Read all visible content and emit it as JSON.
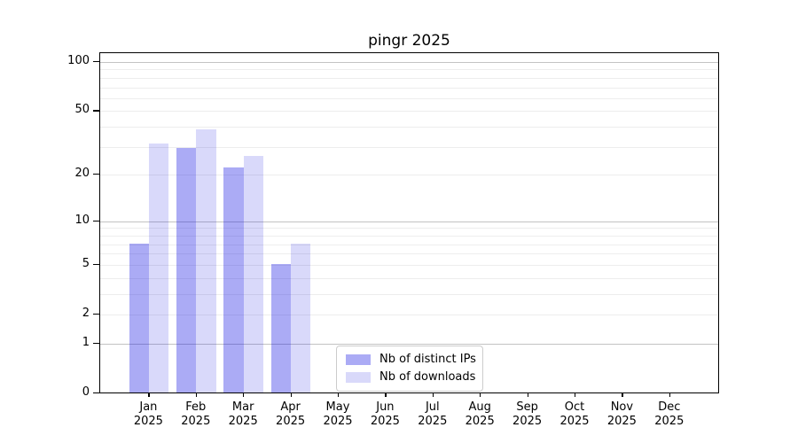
{
  "chart_data": {
    "type": "bar",
    "title": "pingr 2025",
    "categories": [
      "Jan 2025",
      "Feb 2025",
      "Mar 2025",
      "Apr 2025",
      "May 2025",
      "Jun 2025",
      "Jul 2025",
      "Aug 2025",
      "Sep 2025",
      "Oct 2025",
      "Nov 2025",
      "Dec 2025"
    ],
    "series": [
      {
        "name": "Nb of distinct IPs",
        "color": "rgba(15,15,225,0.35)",
        "color_hex_on_white": "#abablf4",
        "values": [
          7,
          29,
          22,
          5,
          0,
          0,
          0,
          0,
          0,
          0,
          0,
          0
        ]
      },
      {
        "name": "Nb of downloads",
        "color": "rgba(15,15,225,0.155)",
        "color_hex_on_white": "#dadafb",
        "values": [
          31,
          38,
          26,
          7,
          0,
          0,
          0,
          0,
          0,
          0,
          0,
          0
        ]
      }
    ],
    "yscale": "log1p",
    "ylim": [
      0,
      115
    ],
    "y_ticks": [
      100,
      50,
      20,
      10,
      5,
      2,
      1,
      0
    ],
    "y_major_gridlines": [
      1,
      10,
      100
    ],
    "y_minor_gridlines": [
      2,
      3,
      4,
      5,
      6,
      7,
      8,
      9,
      20,
      30,
      40,
      50,
      60,
      70,
      80,
      90
    ],
    "grid_colors": {
      "major": "#c3c3c3",
      "minor": "#ededed"
    },
    "legend_position": "lower center",
    "legend_items": [
      "Nb of distinct IPs",
      "Nb of downloads"
    ]
  }
}
